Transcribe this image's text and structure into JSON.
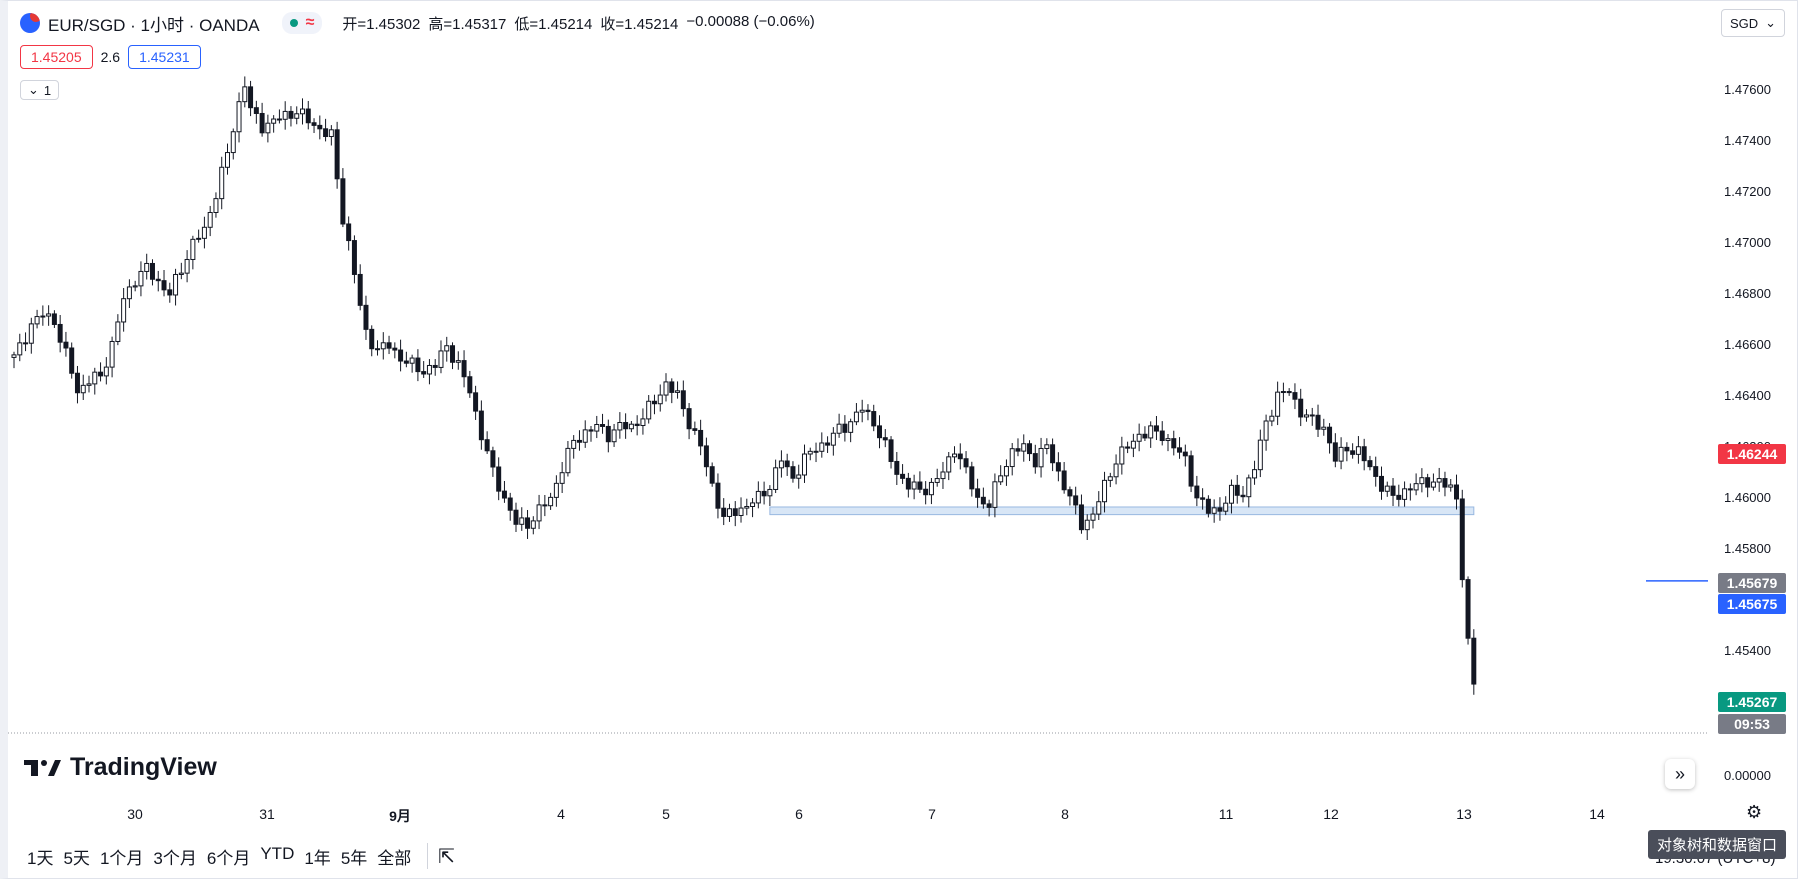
{
  "header": {
    "symbol_title": "EUR/SGD · 1小时 · OANDA",
    "ohlc": {
      "open_label": "开",
      "open": "=1.45302",
      "high_label": "高",
      "high": "=1.45317",
      "low_label": "低",
      "low": "=1.45214",
      "close_label": "收",
      "close": "=1.45214",
      "change": "−0.00088 (−0.06%)"
    },
    "bid": "1.45205",
    "spread": "2.6",
    "ask": "1.45231",
    "collapse_count": "1",
    "currency": "SGD"
  },
  "price_tags": [
    {
      "text": "1.46244",
      "color": "#f23645",
      "price": 1.46244
    },
    {
      "text": "1.45679",
      "color": "#787b86",
      "price": 1.45679
    },
    {
      "text": "1.45675",
      "color": "#2962ff",
      "price": 1.45675
    },
    {
      "text": "1.45267",
      "color": "#089981",
      "price": 1.45267
    },
    {
      "text": "09:53",
      "color": "#787b86"
    }
  ],
  "time_axis_labels": [
    "30",
    "31",
    "9月",
    "4",
    "5",
    "6",
    "7",
    "8",
    "11",
    "12",
    "13",
    "14"
  ],
  "brand": "TradingView",
  "scroll_button": "»",
  "zero_label": "0.00000",
  "tooltip": "对象树和数据窗口",
  "time_readout": "19:30:07 (UTC+8)",
  "ranges": [
    "1天",
    "5天",
    "1个月",
    "3个月",
    "6个月",
    "YTD",
    "1年",
    "5年",
    "全部"
  ],
  "colors": {
    "up": "#ffffff",
    "down": "#131722",
    "wick": "#131722",
    "zone": "#cfe0f5"
  },
  "chart_data": {
    "type": "candlestick",
    "symbol": "EUR/SGD",
    "interval": "1小时",
    "ylim": [
      1.4518,
      1.4768
    ],
    "y_ticks": [
      "1.47600",
      "1.47400",
      "1.47200",
      "1.47000",
      "1.46800",
      "1.46600",
      "1.46400",
      "1.46200",
      "1.46000",
      "1.45800",
      "1.45600",
      "1.45400"
    ],
    "support_zone": [
      1.45935,
      1.45965
    ],
    "close_path": [
      [
        0,
        1.4655
      ],
      [
        3,
        1.4668
      ],
      [
        5,
        1.4672
      ],
      [
        7,
        1.467
      ],
      [
        8,
        1.4662
      ],
      [
        10,
        1.465
      ],
      [
        11,
        1.4642
      ],
      [
        13,
        1.4646
      ],
      [
        15,
        1.4648
      ],
      [
        17,
        1.466
      ],
      [
        19,
        1.4678
      ],
      [
        21,
        1.4686
      ],
      [
        23,
        1.469
      ],
      [
        25,
        1.4685
      ],
      [
        27,
        1.468
      ],
      [
        29,
        1.469
      ],
      [
        31,
        1.47
      ],
      [
        33,
        1.4705
      ],
      [
        35,
        1.472
      ],
      [
        37,
        1.4735
      ],
      [
        39,
        1.4755
      ],
      [
        40,
        1.4763
      ],
      [
        41,
        1.4752
      ],
      [
        43,
        1.4746
      ],
      [
        45,
        1.4748
      ],
      [
        47,
        1.475
      ],
      [
        49,
        1.4752
      ],
      [
        51,
        1.4748
      ],
      [
        53,
        1.4745
      ],
      [
        55,
        1.4742
      ],
      [
        56,
        1.4725
      ],
      [
        57,
        1.471
      ],
      [
        58,
        1.47
      ],
      [
        59,
        1.4688
      ],
      [
        60,
        1.4675
      ],
      [
        61,
        1.4665
      ],
      [
        63,
        1.4658
      ],
      [
        65,
        1.466
      ],
      [
        67,
        1.4655
      ],
      [
        69,
        1.4652
      ],
      [
        71,
        1.465
      ],
      [
        73,
        1.4652
      ],
      [
        75,
        1.466
      ],
      [
        77,
        1.4652
      ],
      [
        79,
        1.4642
      ],
      [
        81,
        1.4625
      ],
      [
        83,
        1.461
      ],
      [
        85,
        1.46
      ],
      [
        87,
        1.459
      ],
      [
        89,
        1.459
      ],
      [
        91,
        1.4595
      ],
      [
        93,
        1.46
      ],
      [
        95,
        1.4612
      ],
      [
        97,
        1.4622
      ],
      [
        99,
        1.4626
      ],
      [
        101,
        1.4628
      ],
      [
        103,
        1.4625
      ],
      [
        105,
        1.4628
      ],
      [
        107,
        1.4628
      ],
      [
        109,
        1.4632
      ],
      [
        111,
        1.4638
      ],
      [
        113,
        1.4645
      ],
      [
        115,
        1.464
      ],
      [
        117,
        1.463
      ],
      [
        119,
        1.462
      ],
      [
        121,
        1.4605
      ],
      [
        123,
        1.4592
      ],
      [
        125,
        1.4595
      ],
      [
        127,
        1.4597
      ],
      [
        129,
        1.46
      ],
      [
        131,
        1.4605
      ],
      [
        133,
        1.4615
      ],
      [
        135,
        1.4608
      ],
      [
        137,
        1.4615
      ],
      [
        139,
        1.462
      ],
      [
        141,
        1.4622
      ],
      [
        143,
        1.4627
      ],
      [
        145,
        1.463
      ],
      [
        147,
        1.4635
      ],
      [
        149,
        1.463
      ],
      [
        151,
        1.462
      ],
      [
        153,
        1.461
      ],
      [
        155,
        1.4605
      ],
      [
        157,
        1.4603
      ],
      [
        159,
        1.4605
      ],
      [
        161,
        1.461
      ],
      [
        163,
        1.462
      ],
      [
        165,
        1.461
      ],
      [
        167,
        1.46
      ],
      [
        169,
        1.4597
      ],
      [
        171,
        1.461
      ],
      [
        173,
        1.4618
      ],
      [
        175,
        1.462
      ],
      [
        177,
        1.4615
      ],
      [
        179,
        1.462
      ],
      [
        181,
        1.461
      ],
      [
        183,
        1.46
      ],
      [
        185,
        1.459
      ],
      [
        187,
        1.4593
      ],
      [
        189,
        1.4605
      ],
      [
        191,
        1.4615
      ],
      [
        193,
        1.462
      ],
      [
        195,
        1.4625
      ],
      [
        197,
        1.4626
      ],
      [
        199,
        1.4625
      ],
      [
        201,
        1.462
      ],
      [
        203,
        1.4615
      ],
      [
        205,
        1.46
      ],
      [
        207,
        1.4595
      ],
      [
        209,
        1.4596
      ],
      [
        211,
        1.4602
      ],
      [
        213,
        1.4602
      ],
      [
        215,
        1.4612
      ],
      [
        217,
        1.463
      ],
      [
        219,
        1.464
      ],
      [
        221,
        1.4642
      ],
      [
        223,
        1.4634
      ],
      [
        225,
        1.463
      ],
      [
        227,
        1.4628
      ],
      [
        229,
        1.4615
      ],
      [
        231,
        1.462
      ],
      [
        233,
        1.4618
      ],
      [
        235,
        1.4612
      ],
      [
        237,
        1.4605
      ],
      [
        239,
        1.46
      ],
      [
        241,
        1.4603
      ],
      [
        243,
        1.4605
      ],
      [
        245,
        1.4607
      ],
      [
        247,
        1.4606
      ],
      [
        249,
        1.4604
      ],
      [
        250,
        1.4601
      ],
      [
        251,
        1.4568
      ],
      [
        252,
        1.4545
      ],
      [
        253,
        1.4527
      ]
    ]
  }
}
